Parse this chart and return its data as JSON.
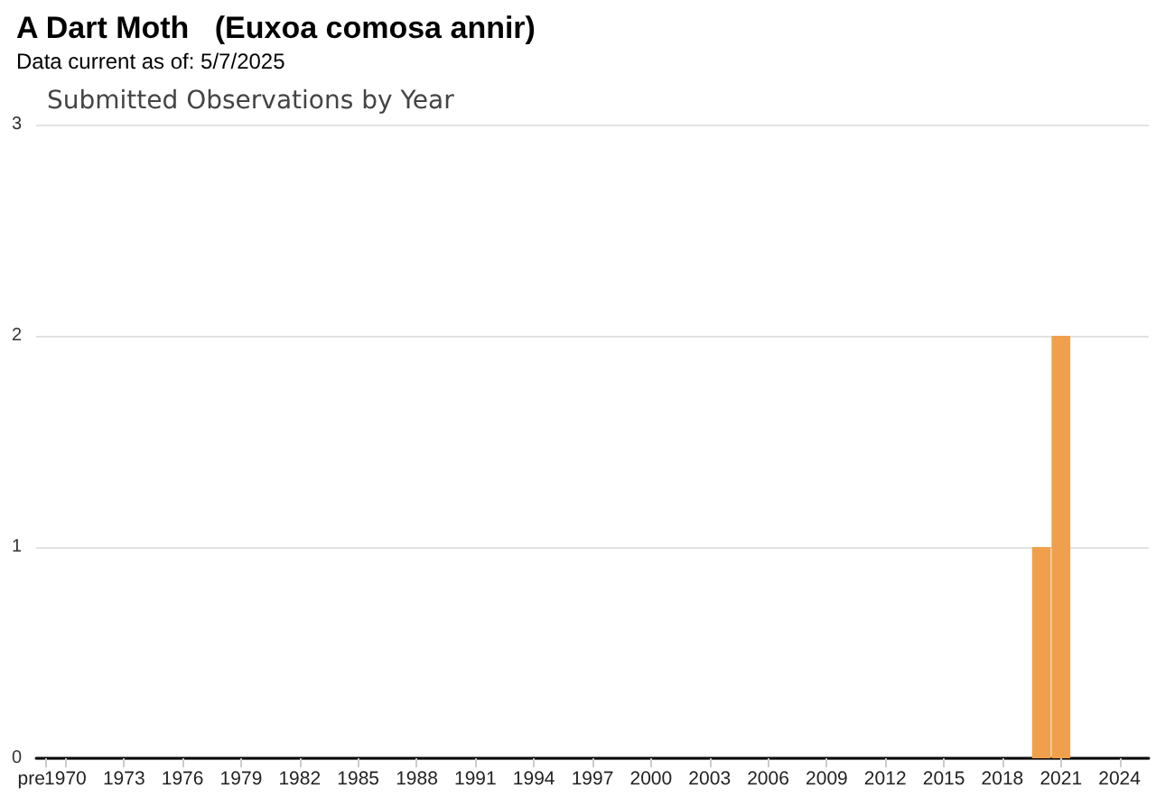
{
  "chart_data": {
    "type": "bar",
    "title": "A Dart Moth   (Euxoa comosa annir)",
    "subtitle": "Data current as of: 5/7/2025",
    "annotations": [
      "Submitted Observations by Year"
    ],
    "categories": [
      "pre",
      "1970",
      null,
      null,
      "1973",
      null,
      null,
      "1976",
      null,
      null,
      "1979",
      null,
      null,
      "1982",
      null,
      null,
      "1985",
      null,
      null,
      "1988",
      null,
      null,
      "1991",
      null,
      null,
      "1994",
      null,
      null,
      "1997",
      null,
      null,
      "2000",
      null,
      null,
      "2003",
      null,
      null,
      "2006",
      null,
      null,
      "2009",
      null,
      null,
      "2012",
      null,
      null,
      "2015",
      null,
      null,
      "2018",
      null,
      null,
      "2021",
      null,
      null,
      "2024",
      null
    ],
    "values": [
      0,
      0,
      0,
      0,
      0,
      0,
      0,
      0,
      0,
      0,
      0,
      0,
      0,
      0,
      0,
      0,
      0,
      0,
      0,
      0,
      0,
      0,
      0,
      0,
      0,
      0,
      0,
      0,
      0,
      0,
      0,
      0,
      0,
      0,
      0,
      0,
      0,
      0,
      0,
      0,
      0,
      0,
      0,
      0,
      0,
      0,
      0,
      0,
      0,
      0,
      0,
      1,
      2,
      0,
      0,
      0,
      0
    ],
    "color": "#f0a04c",
    "ylim": [
      0,
      3
    ],
    "yticks": [
      0,
      1,
      2,
      3
    ],
    "grid": "y"
  }
}
